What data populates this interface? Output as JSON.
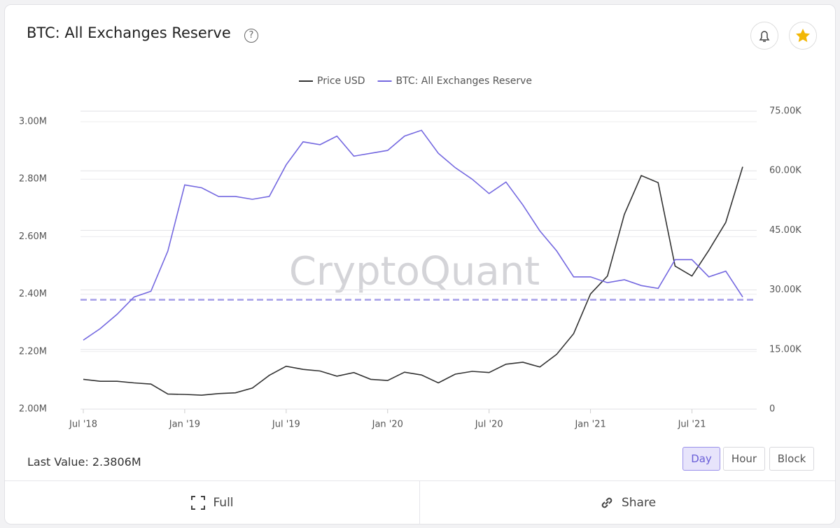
{
  "header": {
    "title": "BTC: All Exchanges Reserve"
  },
  "watermark": "CryptoQuant",
  "chart_data": {
    "type": "line",
    "x": [
      "2018-07",
      "2018-08",
      "2018-09",
      "2018-10",
      "2018-11",
      "2018-12",
      "2019-01",
      "2019-02",
      "2019-03",
      "2019-04",
      "2019-05",
      "2019-06",
      "2019-07",
      "2019-08",
      "2019-09",
      "2019-10",
      "2019-11",
      "2019-12",
      "2020-01",
      "2020-02",
      "2020-03",
      "2020-04",
      "2020-05",
      "2020-06",
      "2020-07",
      "2020-08",
      "2020-09",
      "2020-10",
      "2020-11",
      "2020-12",
      "2021-01",
      "2021-02",
      "2021-03",
      "2021-04",
      "2021-05",
      "2021-06",
      "2021-07",
      "2021-08",
      "2021-09",
      "2021-10"
    ],
    "series": [
      {
        "name": "Price USD",
        "color": "#333333",
        "axis": "y2",
        "values": [
          7500,
          7000,
          7000,
          6600,
          6300,
          3800,
          3700,
          3500,
          3900,
          4100,
          5300,
          8500,
          10800,
          10000,
          9600,
          8300,
          9200,
          7500,
          7200,
          9300,
          8600,
          6600,
          8800,
          9500,
          9200,
          11300,
          11800,
          10600,
          13800,
          19000,
          29000,
          33500,
          49000,
          58800,
          57000,
          36000,
          33500,
          40000,
          47000,
          61000
        ]
      },
      {
        "name": "BTC: All Exchanges Reserve",
        "color": "#7468e0",
        "values": [
          2240000,
          2280000,
          2330000,
          2390000,
          2410000,
          2550000,
          2780000,
          2770000,
          2740000,
          2740000,
          2730000,
          2740000,
          2850000,
          2930000,
          2920000,
          2950000,
          2880000,
          2890000,
          2900000,
          2950000,
          2970000,
          2890000,
          2840000,
          2800000,
          2750000,
          2790000,
          2710000,
          2620000,
          2550000,
          2460000,
          2460000,
          2440000,
          2450000,
          2430000,
          2420000,
          2520000,
          2520000,
          2460000,
          2480000,
          2390000
        ]
      }
    ],
    "ylim": [
      2000000,
      3000000
    ],
    "yticks": [
      {
        "value": 2000000,
        "label": "2.00M"
      },
      {
        "value": 2200000,
        "label": "2.20M"
      },
      {
        "value": 2400000,
        "label": "2.40M"
      },
      {
        "value": 2600000,
        "label": "2.60M"
      },
      {
        "value": 2800000,
        "label": "2.80M"
      },
      {
        "value": 3000000,
        "label": "3.00M"
      }
    ],
    "y2lim": [
      0,
      75000
    ],
    "y2ticks": [
      0,
      {
        "value": 15000,
        "label": "15.00K"
      },
      {
        "value": 30000,
        "label": "30.00K"
      },
      {
        "value": 45000,
        "label": "45.00K"
      },
      {
        "value": 60000,
        "label": "60.00K"
      },
      {
        "value": 75000,
        "label": "75.00K"
      }
    ],
    "xticks": [
      {
        "value": "2018-07",
        "label": "Jul '18"
      },
      {
        "value": "2019-01",
        "label": "Jan '19"
      },
      {
        "value": "2019-07",
        "label": "Jul '19"
      },
      {
        "value": "2020-01",
        "label": "Jan '20"
      },
      {
        "value": "2020-07",
        "label": "Jul '20"
      },
      {
        "value": "2021-01",
        "label": "Jan '21"
      },
      {
        "value": "2021-07",
        "label": "Jul '21"
      }
    ],
    "grid": true,
    "last_value_caption": "Last Value:",
    "last_value": {
      "value": 2380600,
      "label": "2.3806M"
    }
  },
  "controls": {
    "intervals": [
      "Day",
      "Hour",
      "Block"
    ],
    "active": "Day"
  },
  "footer": {
    "full": "Full",
    "share": "Share"
  }
}
